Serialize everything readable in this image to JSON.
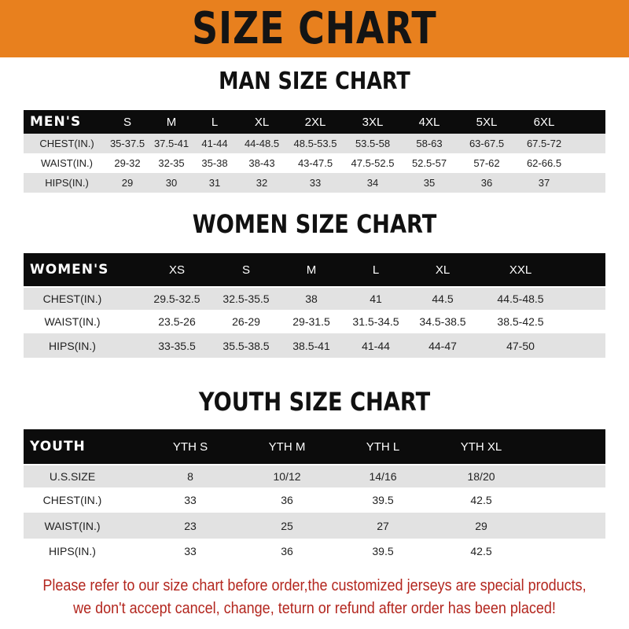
{
  "banner_title": "SIZE CHART",
  "colors": {
    "banner": "#E8801E",
    "header_row": "#0c0c0c",
    "note_text": "#B3261E"
  },
  "men": {
    "title": "MAN SIZE CHART",
    "header": [
      "MEN'S",
      "S",
      "M",
      "L",
      "XL",
      "2XL",
      "3XL",
      "4XL",
      "5XL",
      "6XL"
    ],
    "rows": [
      [
        "CHEST(IN.)",
        "35-37.5",
        "37.5-41",
        "41-44",
        "44-48.5",
        "48.5-53.5",
        "53.5-58",
        "58-63",
        "63-67.5",
        "67.5-72"
      ],
      [
        "WAIST(IN.)",
        "29-32",
        "32-35",
        "35-38",
        "38-43",
        "43-47.5",
        "47.5-52.5",
        "52.5-57",
        "57-62",
        "62-66.5"
      ],
      [
        "HIPS(IN.)",
        "29",
        "30",
        "31",
        "32",
        "33",
        "34",
        "35",
        "36",
        "37"
      ]
    ]
  },
  "women": {
    "title": "WOMEN SIZE CHART",
    "header": [
      "WOMEN'S",
      "XS",
      "S",
      "M",
      "L",
      "XL",
      "XXL"
    ],
    "rows": [
      [
        "CHEST(IN.)",
        "29.5-32.5",
        "32.5-35.5",
        "38",
        "41",
        "44.5",
        "44.5-48.5"
      ],
      [
        "WAIST(IN.)",
        "23.5-26",
        "26-29",
        "29-31.5",
        "31.5-34.5",
        "34.5-38.5",
        "38.5-42.5"
      ],
      [
        "HIPS(IN.)",
        "33-35.5",
        "35.5-38.5",
        "38.5-41",
        "41-44",
        "44-47",
        "47-50"
      ]
    ]
  },
  "youth": {
    "title": "YOUTH SIZE CHART",
    "header": [
      "YOUTH",
      "YTH S",
      "YTH M",
      "YTH L",
      "YTH XL"
    ],
    "rows": [
      [
        "U.S.SIZE",
        "8",
        "10/12",
        "14/16",
        "18/20"
      ],
      [
        "CHEST(IN.)",
        "33",
        "36",
        "39.5",
        "42.5"
      ],
      [
        "WAIST(IN.)",
        "23",
        "25",
        "27",
        "29"
      ],
      [
        "HIPS(IN.)",
        "33",
        "36",
        "39.5",
        "42.5"
      ]
    ]
  },
  "note": {
    "line1": "Please refer to our size chart before order,the customized jerseys are special products,",
    "line2": "we don't accept cancel, change, teturn or refund after order has been placed!"
  }
}
